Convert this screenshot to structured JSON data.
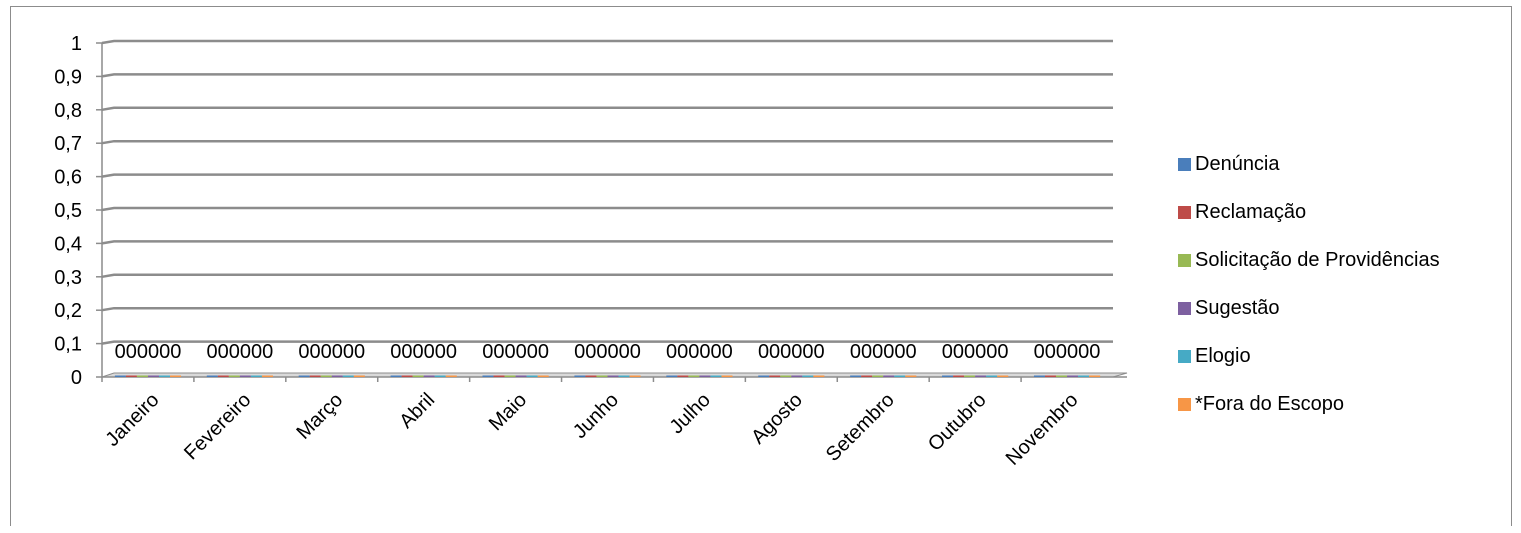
{
  "chart_data": {
    "type": "bar",
    "title": "",
    "xlabel": "",
    "ylabel": "",
    "categories": [
      "Janeiro",
      "Fevereiro",
      "Março",
      "Abril",
      "Maio",
      "Junho",
      "Julho",
      "Agosto",
      "Setembro",
      "Outubro",
      "Novembro"
    ],
    "y_ticks": [
      "0",
      "0,1",
      "0,2",
      "0,3",
      "0,4",
      "0,5",
      "0,6",
      "0,7",
      "0,8",
      "0,9",
      "1"
    ],
    "ylim": [
      0,
      1
    ],
    "grid": true,
    "legend_position": "right",
    "data_label_text": "000000",
    "series": [
      {
        "name": "Denúncia",
        "color": "#4a7ebb",
        "values": [
          0,
          0,
          0,
          0,
          0,
          0,
          0,
          0,
          0,
          0,
          0
        ]
      },
      {
        "name": "Reclamação",
        "color": "#be4b48",
        "values": [
          0,
          0,
          0,
          0,
          0,
          0,
          0,
          0,
          0,
          0,
          0
        ]
      },
      {
        "name": "Solicitação de Providências",
        "color": "#98b954",
        "values": [
          0,
          0,
          0,
          0,
          0,
          0,
          0,
          0,
          0,
          0,
          0
        ]
      },
      {
        "name": "Sugestão",
        "color": "#7d60a0",
        "values": [
          0,
          0,
          0,
          0,
          0,
          0,
          0,
          0,
          0,
          0,
          0
        ]
      },
      {
        "name": "Elogio",
        "color": "#46aac5",
        "values": [
          0,
          0,
          0,
          0,
          0,
          0,
          0,
          0,
          0,
          0,
          0
        ]
      },
      {
        "name": "*Fora do Escopo",
        "color": "#f79646",
        "values": [
          0,
          0,
          0,
          0,
          0,
          0,
          0,
          0,
          0,
          0,
          0
        ]
      }
    ]
  }
}
